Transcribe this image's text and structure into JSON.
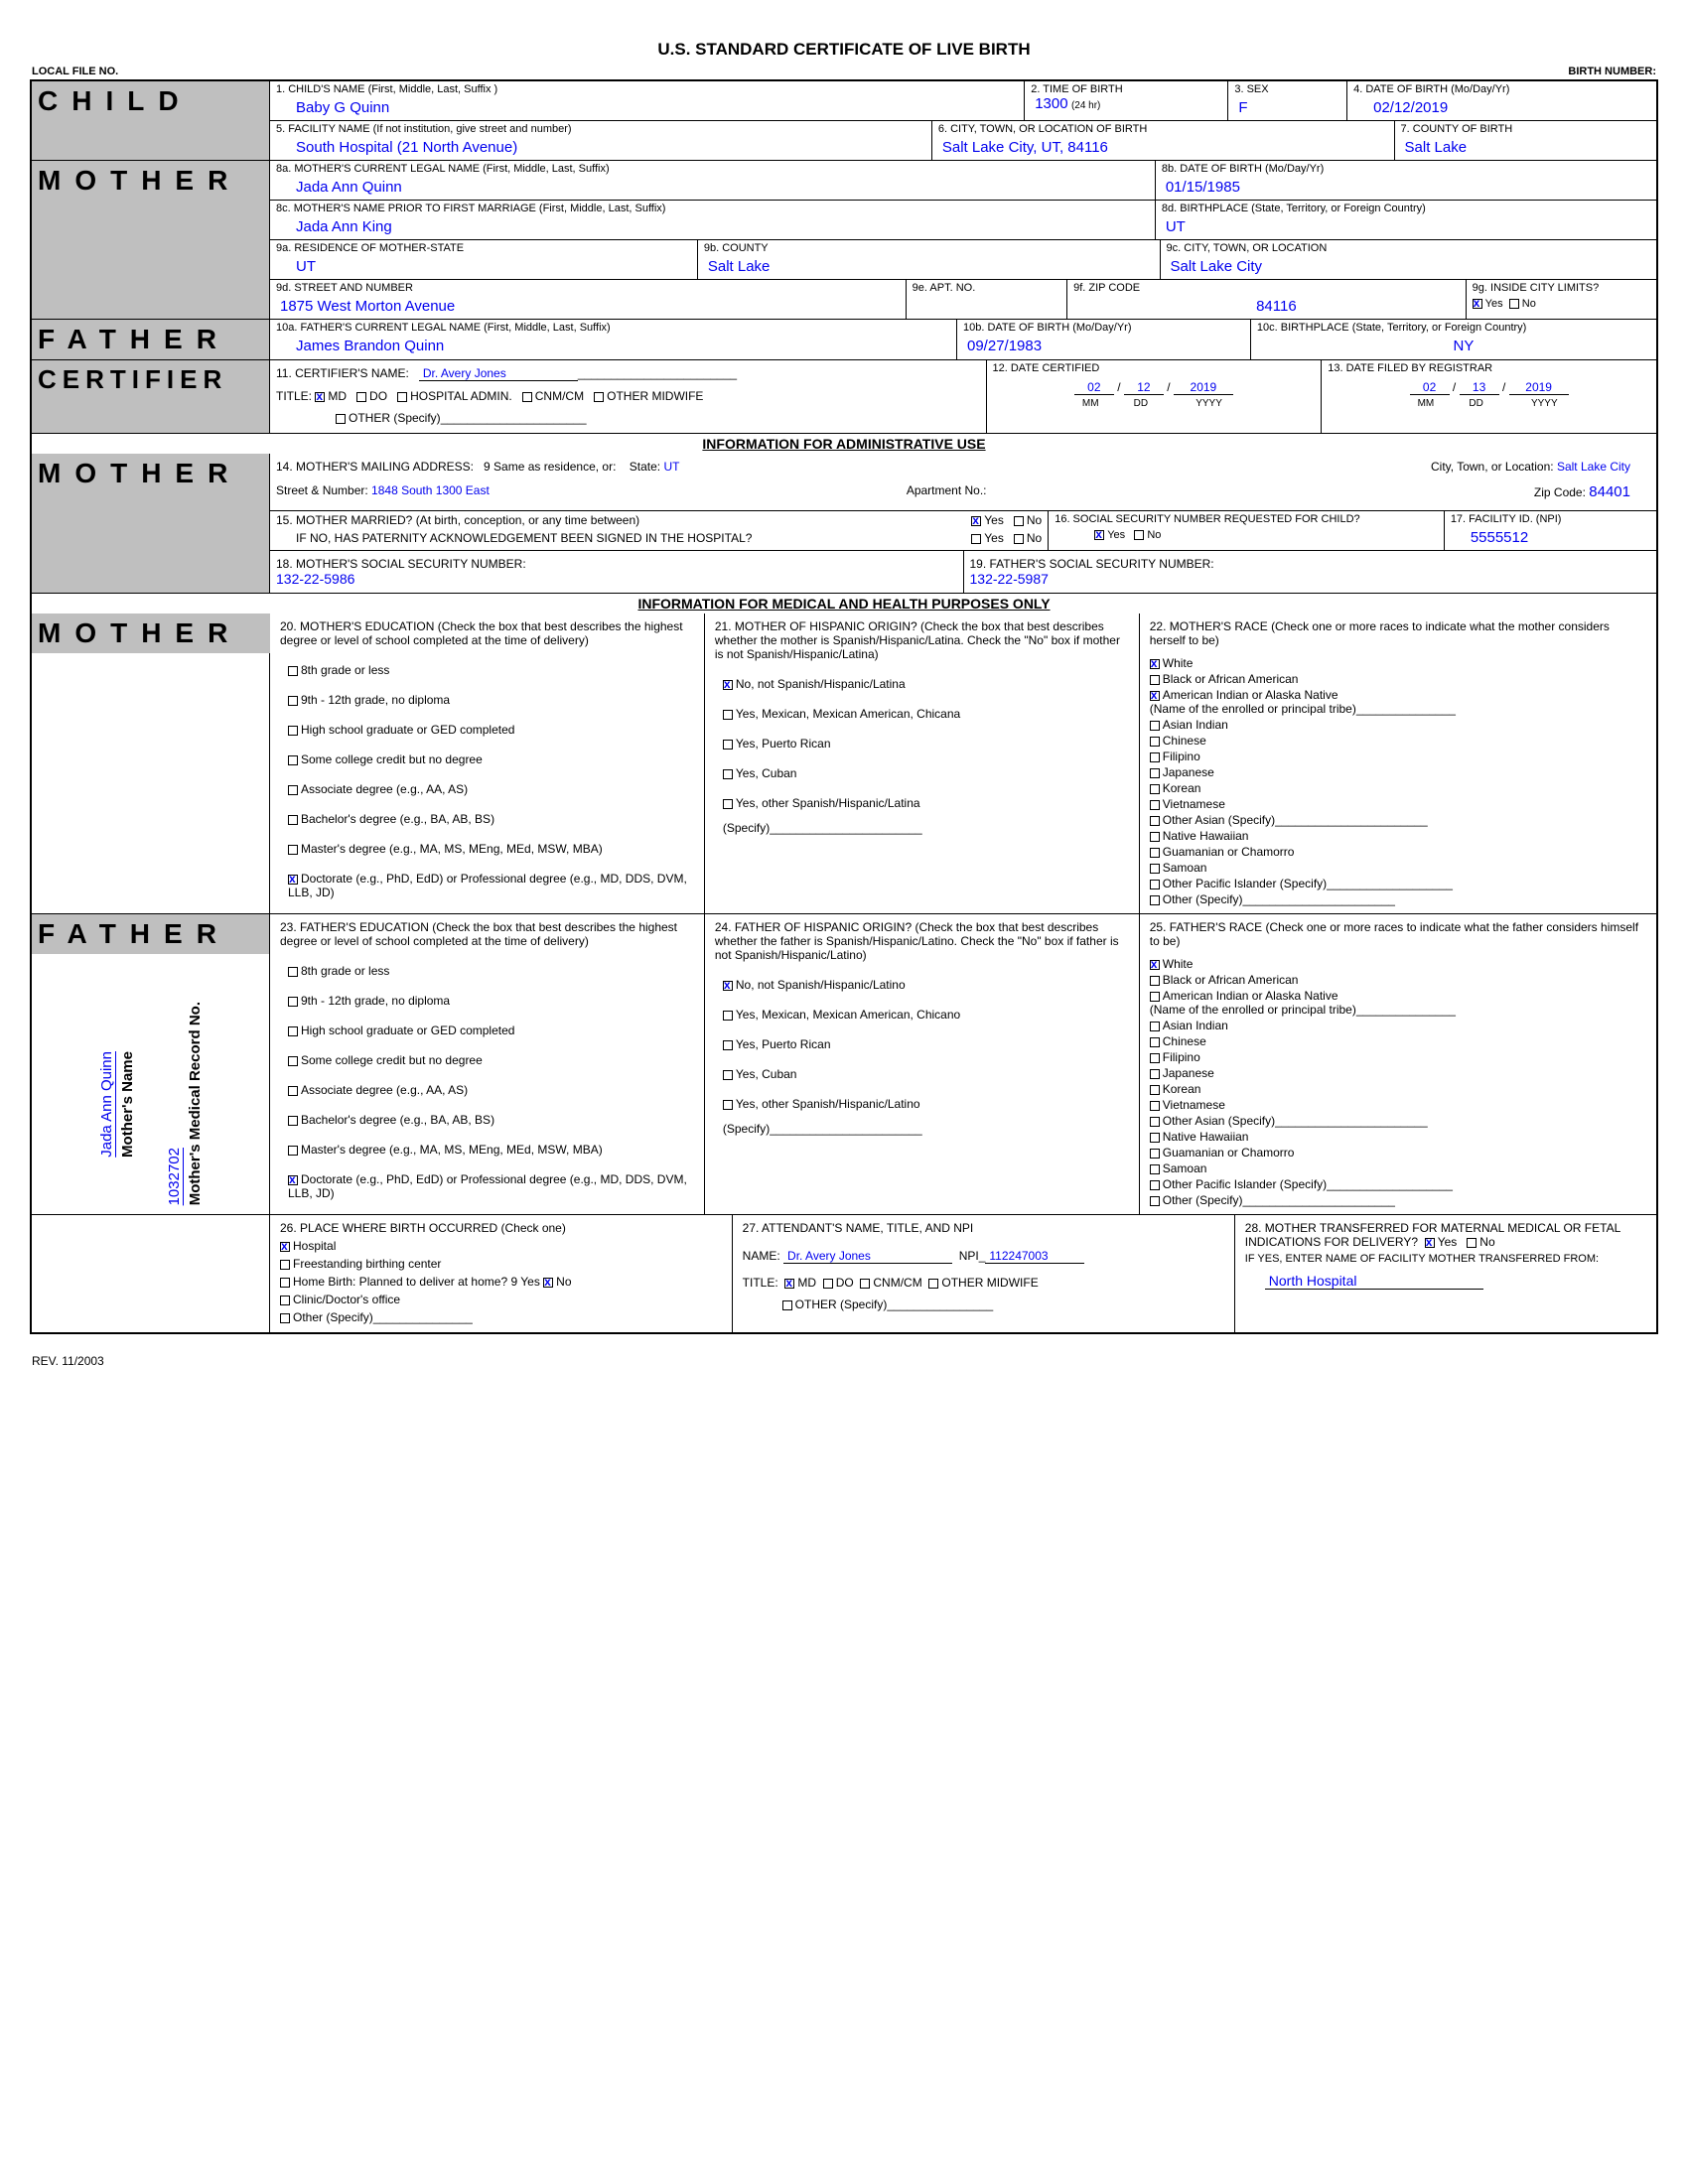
{
  "title": "U.S. STANDARD CERTIFICATE OF LIVE BIRTH",
  "local_file_no_label": "LOCAL FILE NO.",
  "birth_number_label": "BIRTH NUMBER:",
  "rev": "REV. 11/2003",
  "child": {
    "label": "CHILD",
    "name_label": "1. CHILD'S NAME (First, Middle, Last, Suffix )",
    "name": "Baby G Quinn",
    "time_label": "2. TIME OF BIRTH",
    "time": "1300",
    "time_sub": "(24 hr)",
    "sex_label": "3. SEX",
    "sex": "F",
    "dob_label": "4.  DATE OF BIRTH (Mo/Day/Yr)",
    "dob": "02/12/2019",
    "facility_label": "5. FACILITY NAME (If not institution, give street and number)",
    "facility": "South Hospital   (21 North Avenue)",
    "city_label": "6. CITY, TOWN, OR LOCATION OF BIRTH",
    "city": "Salt Lake City, UT, 84116",
    "county_label": "7.  COUNTY OF BIRTH",
    "county": "Salt Lake"
  },
  "mother": {
    "label": "MOTHER",
    "name_label": "8a.  MOTHER'S CURRENT LEGAL NAME (First, Middle, Last, Suffix)",
    "name": "Jada Ann Quinn",
    "dob_label": "8b.  DATE OF BIRTH (Mo/Day/Yr)",
    "dob": "01/15/1985",
    "prior_label": "8c.  MOTHER'S NAME PRIOR TO FIRST MARRIAGE (First, Middle, Last, Suffix)",
    "prior": "Jada Ann King",
    "birthplace_label": "8d.  BIRTHPLACE (State, Territory, or Foreign Country)",
    "birthplace": "UT",
    "res_state_label": "9a. RESIDENCE OF MOTHER-STATE",
    "res_state": "UT",
    "res_county_label": "9b.  COUNTY",
    "res_county": "Salt Lake",
    "res_city_label": "9c.  CITY, TOWN, OR LOCATION",
    "res_city": "Salt Lake City",
    "street_label": "9d.  STREET AND NUMBER",
    "street": "1875 West Morton Avenue",
    "apt_label": "9e.  APT. NO.",
    "zip_label": "9f.  ZIP CODE",
    "zip": "84116",
    "inside_label": "9g.  INSIDE CITY LIMITS?",
    "inside_yes": "Yes",
    "inside_no": "No"
  },
  "father": {
    "label": "FATHER",
    "name_label": "10a. FATHER'S CURRENT LEGAL NAME (First, Middle, Last, Suffix)",
    "name": "James Brandon Quinn",
    "dob_label": "10b.  DATE OF BIRTH (Mo/Day/Yr)",
    "dob": "09/27/1983",
    "birthplace_label": "10c.  BIRTHPLACE (State, Territory, or Foreign Country)",
    "birthplace": "NY"
  },
  "certifier": {
    "label": "CERTIFIER",
    "name_label": "11.  CERTIFIER'S NAME:",
    "name": "Dr. Avery Jones",
    "title_label": "TITLE:",
    "title_md": "MD",
    "title_do": "DO",
    "title_ha": "HOSPITAL ADMIN.",
    "title_cnm": "CNM/CM",
    "title_om": "OTHER MIDWIFE",
    "other_label": "OTHER (Specify)",
    "date_cert_label": "12. DATE CERTIFIED",
    "date_cert_mm": "02",
    "date_cert_dd": "12",
    "date_cert_yy": "2019",
    "date_filed_label": "13.  DATE FILED BY REGISTRAR",
    "date_filed_mm": "02",
    "date_filed_dd": "13",
    "date_filed_yy": "2019",
    "mm": "MM",
    "dd": "DD",
    "yyyy": "YYYY"
  },
  "admin_title": "INFORMATION FOR ADMINISTRATIVE USE",
  "mailing": {
    "label": "14.  MOTHER'S MAILING ADDRESS:",
    "same_as": "9 Same as residence, or:",
    "state_label": "State:",
    "state": "UT",
    "city_label": "City, Town, or Location:",
    "city": "Salt Lake City",
    "street_label": "Street & Number:",
    "street": "1848 South 1300 East",
    "apt_label": "Apartment No.:",
    "zip_label": "Zip Code:",
    "zip": "84401"
  },
  "q15": {
    "married_label": "15. MOTHER MARRIED? (At birth, conception, or any time between)",
    "yes": "Yes",
    "no": "No",
    "paternity_label": "IF NO, HAS PATERNITY ACKNOWLEDGEMENT BEEN SIGNED IN THE HOSPITAL?",
    "ssn_req_label": "16.  SOCIAL SECURITY NUMBER REQUESTED FOR CHILD?",
    "facility_id_label": "17.  FACILITY ID. (NPI)",
    "facility_id": "5555512"
  },
  "q18": {
    "label": "18. MOTHER'S SOCIAL SECURITY NUMBER:",
    "val": "132-22-5986"
  },
  "q19": {
    "label": "19. FATHER'S SOCIAL SECURITY NUMBER:",
    "val": "132-22-5987"
  },
  "med_title": "INFORMATION FOR MEDICAL AND HEALTH PURPOSES ONLY",
  "medu": {
    "header": "20.  MOTHER'S EDUCATION (Check the box that best describes the highest degree or level of school completed at the time of delivery)",
    "opts": [
      "8th grade or less",
      "9th - 12th grade, no diploma",
      "High school graduate or GED completed",
      "Some college credit but no degree",
      "Associate degree (e.g., AA, AS)",
      "Bachelor's degree (e.g., BA, AB, BS)",
      "Master's degree (e.g., MA, MS, MEng,  MEd, MSW, MBA)",
      "Doctorate (e.g., PhD, EdD) or Professional degree (e.g., MD, DDS, DVM, LLB, JD)"
    ],
    "checked_idx": 7
  },
  "mhisp": {
    "header": "21.  MOTHER OF HISPANIC ORIGIN?  (Check the box that best describes whether the mother is Spanish/Hispanic/Latina. Check the \"No\" box if  mother is not Spanish/Hispanic/Latina)",
    "opts": [
      "No, not Spanish/Hispanic/Latina",
      "Yes, Mexican, Mexican American, Chicana",
      "Yes, Puerto Rican",
      "Yes, Cuban",
      "Yes, other Spanish/Hispanic/Latina"
    ],
    "specify": "(Specify)_______________________",
    "checked_idx": 0
  },
  "mrace": {
    "header": "22.  MOTHER'S RACE (Check one or more races to indicate what the mother  considers herself  to be)",
    "opts": [
      "White",
      "Black or African American",
      "American Indian or Alaska Native\n(Name of the enrolled or principal tribe)_______________",
      "Asian Indian",
      "Chinese",
      "Filipino",
      "Japanese",
      "Korean",
      "Vietnamese",
      "Other Asian (Specify)_______________________",
      "Native Hawaiian",
      "Guamanian or Chamorro",
      "Samoan",
      "Other Pacific Islander (Specify)___________________",
      "Other (Specify)_______________________"
    ],
    "checked_idx": [
      0,
      2
    ]
  },
  "fedu": {
    "header": "23.  FATHER'S EDUCATION (Check the box that best describes the highest degree or level of school completed at the time of delivery)",
    "opts": [
      "8th grade or less",
      "9th - 12th grade, no diploma",
      "High school graduate or GED completed",
      "Some college credit but no degree",
      "Associate degree (e.g., AA, AS)",
      "Bachelor's degree (e.g., BA, AB, BS)",
      "Master's degree (e.g., MA, MS, MEng,  MEd, MSW, MBA)",
      "Doctorate (e.g., PhD, EdD) or Professional degree (e.g., MD, DDS, DVM, LLB, JD)"
    ],
    "checked_idx": 7
  },
  "fhisp": {
    "header": "24.  FATHER OF HISPANIC ORIGIN?  (Check the box that best describes whether the father is Spanish/Hispanic/Latino.  Check the \"No\" box if  father is not Spanish/Hispanic/Latino)",
    "opts": [
      "No, not Spanish/Hispanic/Latino",
      "Yes, Mexican, Mexican American, Chicano",
      "Yes, Puerto Rican",
      "Yes, Cuban",
      "Yes, other Spanish/Hispanic/Latino"
    ],
    "specify": "(Specify)_______________________",
    "checked_idx": 0
  },
  "frace": {
    "header": "25.  FATHER'S RACE (Check one or more races to indicate what the father  considers himself to be)",
    "opts": [
      "White",
      "Black or African American",
      "American Indian or Alaska Native\n(Name of the enrolled or principal tribe)_______________",
      "Asian Indian",
      "Chinese",
      "Filipino",
      "Japanese",
      "Korean",
      "Vietnamese",
      "Other Asian (Specify)_______________________",
      "Native Hawaiian",
      "Guamanian or Chamorro",
      "Samoan",
      "Other Pacific Islander (Specify)___________________",
      "Other (Specify)_______________________"
    ],
    "checked_idx": [
      0
    ]
  },
  "side": {
    "mother_name_label": "Mother's Name",
    "mother_name": "Jada Ann Quinn",
    "med_rec_label": "Mother's Medical Record No.",
    "med_rec": "1032702"
  },
  "q26": {
    "header": "26.  PLACE WHERE BIRTH OCCURRED (Check one)",
    "opts": [
      "Hospital",
      "Freestanding birthing center",
      "Home Birth: Planned to deliver at home? 9 Yes",
      "Clinic/Doctor's office",
      "Other (Specify)_______________"
    ],
    "checked_idx": 0,
    "homebirth_no": "No"
  },
  "q27": {
    "header": "27.  ATTENDANT'S NAME, TITLE, AND NPI",
    "name_label": "NAME:",
    "name": "Dr. Avery Jones",
    "npi_label": "NPI_",
    "npi": "112247003",
    "title_label": "TITLE:",
    "md": "MD",
    "do": "DO",
    "cnm": "CNM/CM",
    "om": "OTHER MIDWIFE",
    "other": "OTHER (Specify)________________"
  },
  "q28": {
    "header": "28. MOTHER TRANSFERRED FOR MATERNAL MEDICAL OR FETAL INDICATIONS FOR DELIVERY?",
    "yes": "Yes",
    "no": "No",
    "ifyes": "IF YES, ENTER NAME OF FACILITY MOTHER TRANSFERRED FROM:",
    "val": "North Hospital"
  }
}
